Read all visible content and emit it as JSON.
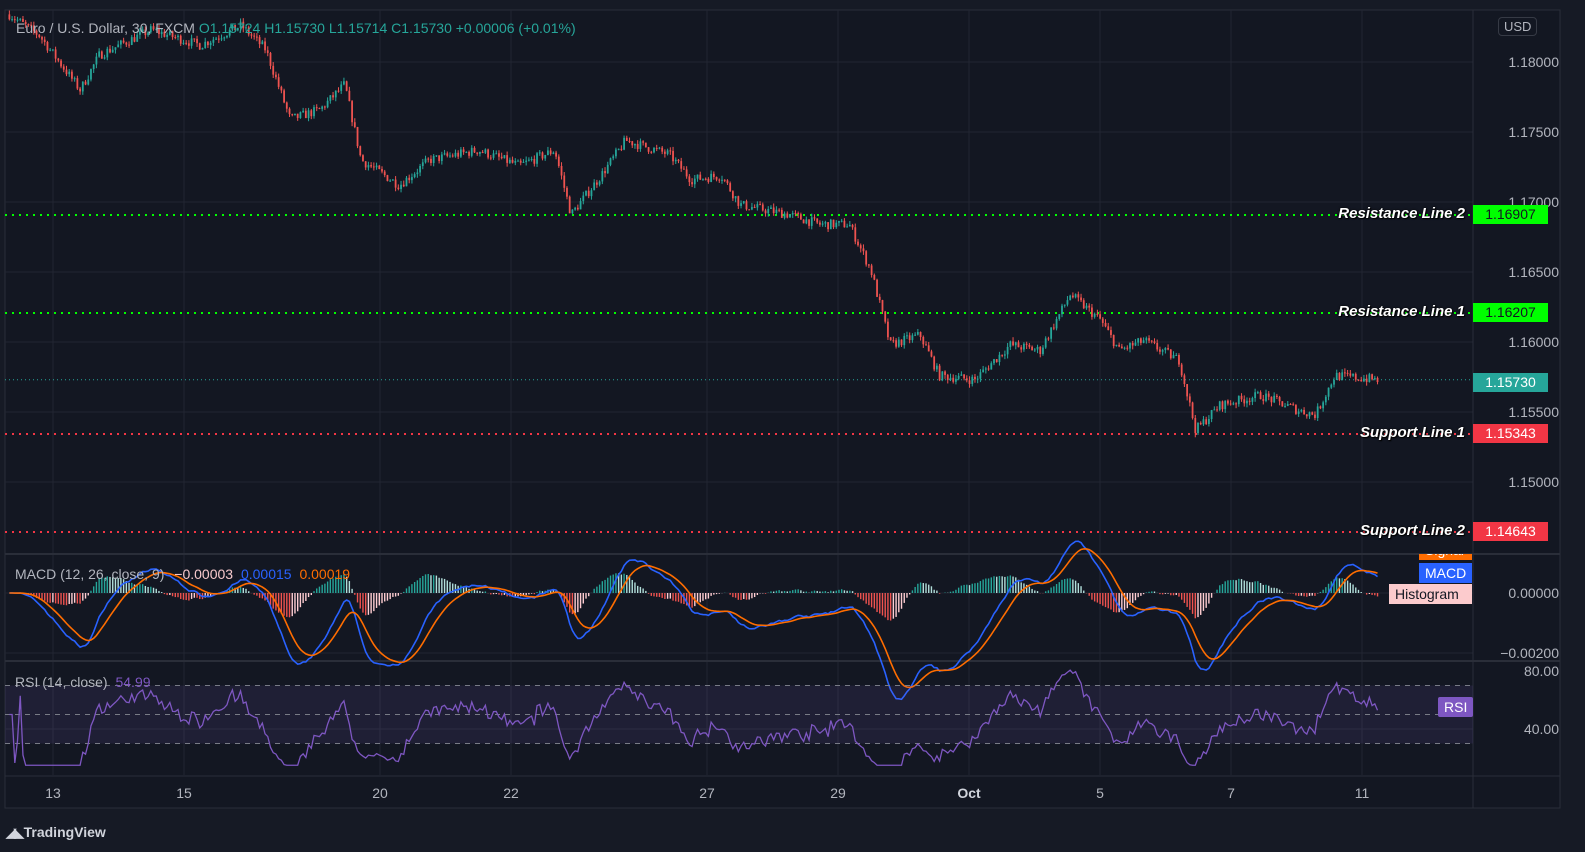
{
  "header": {
    "symbol": "Euro / U.S. Dollar, 30, FXCM",
    "open": "O1.15724",
    "high": "H1.15730",
    "low": "L1.15714",
    "close": "C1.15730",
    "change": "+0.00006 (+0.01%)"
  },
  "currency": "USD",
  "macd_legend": {
    "title": "MACD (12, 26, close, 9)",
    "histogram": "−0.00003",
    "macd": "0.00015",
    "signal": "0.00019",
    "tags": {
      "signal": "Signal",
      "macd": "MACD",
      "histogram": "Histogram"
    }
  },
  "rsi_legend": {
    "title": "RSI (14, close)",
    "value": "54.99",
    "tag": "RSI"
  },
  "branding": "TradingView",
  "colors": {
    "background": "#161a25",
    "up": "#26a69a",
    "down": "#ef5350",
    "resistance": "#00ff00",
    "support": "#f23645",
    "macd": "#2962ff",
    "signal": "#ff6d00",
    "rsi": "#7e57c2"
  },
  "chart_data": {
    "type": "candlestick",
    "title": "Euro / U.S. Dollar, 30, FXCM",
    "x_ticks": [
      "13",
      "15",
      "20",
      "22",
      "27",
      "29",
      "Oct",
      "5",
      "7",
      "11"
    ],
    "y_ticks": [
      "1.18000",
      "1.17500",
      "1.17000",
      "1.16500",
      "1.16000",
      "1.15500",
      "1.15000"
    ],
    "ylim": [
      1.1445,
      1.1845
    ],
    "grid": true,
    "price_path": [
      [
        "09-10 08:00",
        1.1834
      ],
      [
        "09-10 19:00",
        1.1819
      ],
      [
        "09-13 10:00",
        1.178
      ],
      [
        "09-13 17:00",
        1.1805
      ],
      [
        "09-14 12:00",
        1.1823
      ],
      [
        "09-15 06:00",
        1.1812
      ],
      [
        "09-15 21:00",
        1.1826
      ],
      [
        "09-16 06:00",
        1.1809
      ],
      [
        "09-16 15:00",
        1.1759
      ],
      [
        "09-17 02:00",
        1.1766
      ],
      [
        "09-17 11:00",
        1.1784
      ],
      [
        "09-17 17:00",
        1.173
      ],
      [
        "09-20 07:00",
        1.1712
      ],
      [
        "09-20 18:00",
        1.173
      ],
      [
        "09-21 12:00",
        1.1737
      ],
      [
        "09-22 03:00",
        1.1726
      ],
      [
        "09-22 16:00",
        1.1737
      ],
      [
        "09-22 22:00",
        1.1691
      ],
      [
        "09-23 09:00",
        1.1719
      ],
      [
        "09-23 18:00",
        1.1744
      ],
      [
        "09-24 10:00",
        1.1734
      ],
      [
        "09-24 18:00",
        1.1716
      ],
      [
        "09-27 05:00",
        1.1719
      ],
      [
        "09-27 12:00",
        1.1698
      ],
      [
        "09-28 06:00",
        1.1691
      ],
      [
        "09-28 17:00",
        1.1684
      ],
      [
        "09-29 04:00",
        1.1684
      ],
      [
        "09-29 12:00",
        1.1651
      ],
      [
        "09-29 19:00",
        1.1598
      ],
      [
        "09-30 06:00",
        1.1605
      ],
      [
        "09-30 13:00",
        1.1576
      ],
      [
        "10-01 02:00",
        1.1573
      ],
      [
        "10-01 15:00",
        1.1598
      ],
      [
        "10-04 02:00",
        1.1594
      ],
      [
        "10-04 13:00",
        1.1634
      ],
      [
        "10-05 00:00",
        1.1616
      ],
      [
        "10-05 07:00",
        1.1594
      ],
      [
        "10-05 16:00",
        1.1601
      ],
      [
        "10-06 05:00",
        1.1587
      ],
      [
        "10-06 11:00",
        1.1537
      ],
      [
        "10-06 20:00",
        1.1555
      ],
      [
        "10-07 11:00",
        1.1562
      ],
      [
        "10-08 01:00",
        1.1551
      ],
      [
        "10-08 07:00",
        1.1548
      ],
      [
        "10-08 14:00",
        1.1576
      ],
      [
        "10-11 06:00",
        1.1573
      ]
    ],
    "last_price": "1.15730",
    "levels": [
      {
        "name": "Resistance Line 2",
        "value": "1.16907",
        "kind": "resistance"
      },
      {
        "name": "Resistance Line 1",
        "value": "1.16207",
        "kind": "resistance"
      },
      {
        "name": "Support Line 1",
        "value": "1.15343",
        "kind": "support"
      },
      {
        "name": "Support Line 2",
        "value": "1.14643",
        "kind": "support"
      }
    ],
    "macd": {
      "y_ticks": [
        "0.00000",
        "−0.00200"
      ]
    },
    "rsi": {
      "y_ticks": [
        "80.00",
        "40.00"
      ],
      "bands": [
        70,
        50,
        30
      ]
    }
  }
}
